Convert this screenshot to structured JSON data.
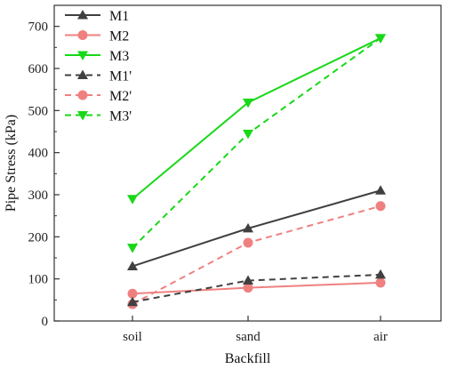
{
  "chart_data": {
    "type": "line",
    "categories": [
      "soil",
      "sand",
      "air"
    ],
    "xlabel": "Backfill",
    "ylabel": "Pipe Stress (kPa)",
    "ylim": [
      0,
      750
    ],
    "yticks": [
      0,
      100,
      200,
      300,
      400,
      500,
      600,
      700
    ],
    "grid": false,
    "legend_position": "top-left",
    "series": [
      {
        "name": "M1",
        "values": [
          130,
          220,
          310
        ],
        "color": "#404040",
        "marker": "triangle-up",
        "dash": "solid"
      },
      {
        "name": "M2",
        "values": [
          65,
          79,
          91
        ],
        "color": "#f08080",
        "marker": "circle",
        "dash": "solid"
      },
      {
        "name": "M3",
        "values": [
          290,
          519,
          672
        ],
        "color": "#18d818",
        "marker": "triangle-down",
        "dash": "solid"
      },
      {
        "name": "M1'",
        "values": [
          45,
          96,
          110
        ],
        "color": "#404040",
        "marker": "triangle-up",
        "dash": "dashed"
      },
      {
        "name": "M2'",
        "values": [
          40,
          186,
          273
        ],
        "color": "#f08080",
        "marker": "circle",
        "dash": "dashed"
      },
      {
        "name": "M3'",
        "values": [
          174,
          445,
          672
        ],
        "color": "#18d818",
        "marker": "triangle-down",
        "dash": "dashed"
      }
    ]
  }
}
